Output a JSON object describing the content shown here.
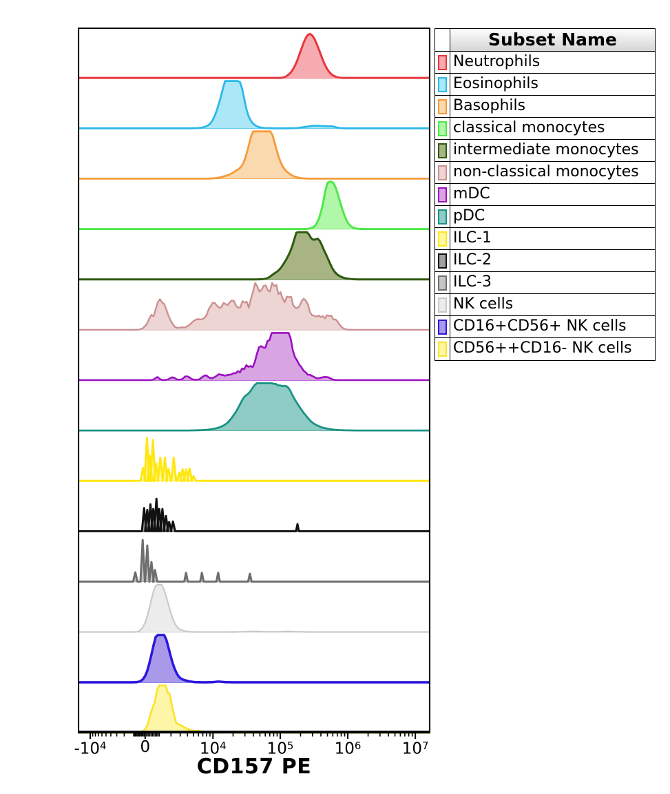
{
  "legend": {
    "header": "Subset Name"
  },
  "axis": {
    "title": "CD157 PE"
  },
  "chart_data": {
    "type": "histogram-ridgeline",
    "xlabel": "CD157 PE",
    "ylabel": "",
    "x_axis_kind": "biexponential",
    "x_range_display": [
      "-1e4",
      "1e7"
    ],
    "x_scale": {
      "T": 2000,
      "c0": 0.191,
      "s": 0.0832,
      "neg_factor": 0.81
    },
    "x_majors": [
      {
        "v": -10000,
        "base": "-10",
        "exp": "4"
      },
      {
        "v": 0,
        "base": "0",
        "exp": ""
      },
      {
        "v": 10000,
        "base": "10",
        "exp": "4"
      },
      {
        "v": 100000,
        "base": "10",
        "exp": "5"
      },
      {
        "v": 1000000,
        "base": "10",
        "exp": "6"
      },
      {
        "v": 10000000,
        "base": "10",
        "exp": "7"
      }
    ],
    "x_minor_decades": {
      "pos": [
        2,
        3,
        4,
        5,
        6
      ],
      "neg": [
        2,
        3
      ]
    },
    "series": [
      {
        "name": "Neutrophils",
        "stroke": "#e8363f",
        "fill": "#f6abb0",
        "stroke_width": 3.0,
        "kind": "smooth",
        "seed": 11,
        "noise": 0.04,
        "range": [
          0.575,
          0.755
        ],
        "peak_value": "2e5",
        "components": [
          [
            0.659,
            0.027,
            0.95
          ]
        ]
      },
      {
        "name": "Eosinophils",
        "stroke": "#2ab9ea",
        "fill": "#ace7f7",
        "stroke_width": 2.8,
        "kind": "noisy",
        "seed": 22,
        "noise": 0.2,
        "range": [
          0.31,
          0.8
        ],
        "peak_value": "2e4",
        "components": [
          [
            0.437,
            0.03,
            0.8
          ],
          [
            0.418,
            0.018,
            0.3
          ],
          [
            0.452,
            0.014,
            0.35
          ],
          [
            0.463,
            0.01,
            0.2
          ],
          [
            0.655,
            0.018,
            0.03
          ],
          [
            0.69,
            0.022,
            0.045
          ],
          [
            0.72,
            0.012,
            0.025
          ]
        ]
      },
      {
        "name": "Basophils",
        "stroke": "#f59a3c",
        "fill": "#fbd9ae",
        "stroke_width": 2.8,
        "kind": "noisy",
        "seed": 33,
        "noise": 0.18,
        "range": [
          0.36,
          0.7
        ],
        "peak_value": "5e4",
        "components": [
          [
            0.527,
            0.036,
            0.85
          ],
          [
            0.505,
            0.018,
            0.45
          ],
          [
            0.545,
            0.012,
            0.25
          ],
          [
            0.45,
            0.03,
            0.08
          ]
        ]
      },
      {
        "name": "classical monocytes",
        "stroke": "#4fe84a",
        "fill": "#b0f7aa",
        "stroke_width": 3.0,
        "kind": "smooth",
        "seed": 44,
        "noise": 0.05,
        "range": [
          0.63,
          0.83
        ],
        "peak_value": "5e5",
        "components": [
          [
            0.723,
            0.022,
            0.92
          ],
          [
            0.708,
            0.012,
            0.25
          ]
        ]
      },
      {
        "name": "intermediate monocytes",
        "stroke": "#2d5a0e",
        "fill": "#a8b483",
        "stroke_width": 3.0,
        "kind": "noisy",
        "seed": 55,
        "noise": 0.16,
        "range": [
          0.5,
          0.8
        ],
        "peak_value": "2.5e5",
        "components": [
          [
            0.652,
            0.04,
            0.85
          ],
          [
            0.625,
            0.02,
            0.45
          ],
          [
            0.69,
            0.018,
            0.25
          ],
          [
            0.58,
            0.015,
            0.1
          ],
          [
            0.555,
            0.01,
            0.05
          ]
        ]
      },
      {
        "name": "non-classical monocytes",
        "stroke": "#cc9091",
        "fill": "#ecd5d3",
        "stroke_width": 2.4,
        "kind": "noisy",
        "seed": 66,
        "noise": 0.5,
        "range": [
          0.155,
          0.8
        ],
        "peak_value": "7e4 (bimodal, minor ~5e2)",
        "components": [
          [
            0.225,
            0.016,
            0.38
          ],
          [
            0.243,
            0.018,
            0.28
          ],
          [
            0.205,
            0.01,
            0.15
          ],
          [
            0.35,
            0.03,
            0.18
          ],
          [
            0.43,
            0.05,
            0.5
          ],
          [
            0.545,
            0.05,
            0.8
          ],
          [
            0.6,
            0.028,
            0.45
          ],
          [
            0.655,
            0.018,
            0.3
          ],
          [
            0.7,
            0.016,
            0.36
          ],
          [
            0.73,
            0.012,
            0.22
          ]
        ]
      },
      {
        "name": "mDC",
        "stroke": "#9b0fc0",
        "fill": "#d8a5e2",
        "stroke_width": 2.6,
        "kind": "noisy",
        "seed": 77,
        "noise": 0.55,
        "range": [
          0.19,
          0.8
        ],
        "peak_value": "9e4",
        "components": [
          [
            0.572,
            0.018,
            0.88
          ],
          [
            0.553,
            0.03,
            0.55
          ],
          [
            0.59,
            0.012,
            0.55
          ],
          [
            0.61,
            0.02,
            0.35
          ],
          [
            0.52,
            0.015,
            0.35
          ],
          [
            0.48,
            0.02,
            0.22
          ],
          [
            0.44,
            0.015,
            0.15
          ],
          [
            0.4,
            0.012,
            0.12
          ],
          [
            0.36,
            0.01,
            0.1
          ],
          [
            0.31,
            0.01,
            0.08
          ],
          [
            0.27,
            0.008,
            0.06
          ],
          [
            0.225,
            0.006,
            0.05
          ],
          [
            0.65,
            0.015,
            0.18
          ],
          [
            0.7,
            0.012,
            0.08
          ]
        ]
      },
      {
        "name": "pDC",
        "stroke": "#1b9384",
        "fill": "#8fccc5",
        "stroke_width": 2.8,
        "kind": "noisy",
        "seed": 88,
        "noise": 0.1,
        "range": [
          0.22,
          0.86
        ],
        "peak_value": "8e4",
        "components": [
          [
            0.548,
            0.065,
            0.8
          ],
          [
            0.51,
            0.035,
            0.3
          ],
          [
            0.6,
            0.028,
            0.28
          ],
          [
            0.465,
            0.02,
            0.15
          ]
        ]
      },
      {
        "name": "ILC-1",
        "stroke": "#ffe714",
        "fill": "#fff9a6",
        "stroke_width": 3.0,
        "kind": "spikes",
        "spike_w": 0.0068,
        "peak_value": "3e2",
        "spikes": [
          [
            0.185,
            0.28
          ],
          [
            0.196,
            0.93
          ],
          [
            0.204,
            0.55
          ],
          [
            0.213,
            0.88
          ],
          [
            0.222,
            0.38
          ],
          [
            0.234,
            0.5
          ],
          [
            0.247,
            0.5
          ],
          [
            0.257,
            0.26
          ],
          [
            0.272,
            0.5
          ],
          [
            0.288,
            0.18
          ],
          [
            0.297,
            0.25
          ],
          [
            0.307,
            0.25
          ],
          [
            0.317,
            0.27
          ],
          [
            0.328,
            0.1
          ]
        ]
      },
      {
        "name": "ILC-2",
        "stroke": "#111111",
        "fill": "#a0a0a0",
        "stroke_width": 3.0,
        "kind": "spikes",
        "spike_w": 0.0062,
        "peak_value": "6e2",
        "spikes": [
          [
            0.188,
            0.5
          ],
          [
            0.197,
            0.46
          ],
          [
            0.206,
            0.58
          ],
          [
            0.214,
            0.48
          ],
          [
            0.223,
            0.7
          ],
          [
            0.231,
            0.48
          ],
          [
            0.24,
            0.48
          ],
          [
            0.25,
            0.33
          ],
          [
            0.259,
            0.2
          ],
          [
            0.27,
            0.21
          ],
          [
            0.623,
            0.155,
            0.004
          ]
        ]
      },
      {
        "name": "ILC-3",
        "stroke": "#6e6e6e",
        "fill": "#c6c6c6",
        "stroke_width": 3.0,
        "kind": "spikes",
        "spike_w": 0.0062,
        "peak_value": "3e2",
        "spikes": [
          [
            0.163,
            0.2
          ],
          [
            0.184,
            0.9
          ],
          [
            0.197,
            0.78
          ],
          [
            0.209,
            0.42
          ],
          [
            0.219,
            0.25
          ],
          [
            0.307,
            0.19,
            0.005
          ],
          [
            0.352,
            0.19,
            0.005
          ],
          [
            0.398,
            0.19,
            0.005
          ],
          [
            0.488,
            0.17,
            0.005
          ]
        ]
      },
      {
        "name": "NK cells",
        "stroke": "#c9c9c9",
        "fill": "#ececec",
        "stroke_width": 2.2,
        "kind": "noisy",
        "seed": 112,
        "noise": 0.07,
        "range": [
          0.16,
          0.7
        ],
        "peak_value": "7e2",
        "components": [
          [
            0.224,
            0.019,
            0.9
          ],
          [
            0.245,
            0.016,
            0.38
          ],
          [
            0.262,
            0.014,
            0.12
          ],
          [
            0.29,
            0.015,
            0.03
          ],
          [
            0.5,
            0.03,
            0.012
          ],
          [
            0.6,
            0.025,
            0.012
          ]
        ]
      },
      {
        "name": "CD16+CD56+ NK cells",
        "stroke": "#2b17dd",
        "fill": "#a89ae9",
        "stroke_width": 3.5,
        "kind": "noisy",
        "seed": 113,
        "noise": 0.08,
        "range": [
          0.155,
          0.48
        ],
        "peak_value": "7.5e2",
        "components": [
          [
            0.228,
            0.019,
            0.92
          ],
          [
            0.248,
            0.016,
            0.42
          ],
          [
            0.268,
            0.014,
            0.14
          ],
          [
            0.3,
            0.015,
            0.04
          ],
          [
            0.4,
            0.01,
            0.015
          ]
        ]
      },
      {
        "name": "CD56++CD16- NK cells",
        "stroke": "#fbe32e",
        "fill": "#fdf6a8",
        "stroke_width": 2.8,
        "kind": "noisy",
        "seed": 114,
        "noise": 0.35,
        "range": [
          0.165,
          0.47
        ],
        "peak_value": "8e2",
        "components": [
          [
            0.231,
            0.018,
            0.85
          ],
          [
            0.249,
            0.013,
            0.55
          ],
          [
            0.266,
            0.012,
            0.22
          ],
          [
            0.288,
            0.012,
            0.12
          ],
          [
            0.315,
            0.01,
            0.06
          ],
          [
            0.345,
            0.01,
            0.04
          ],
          [
            0.42,
            0.01,
            0.025
          ]
        ]
      }
    ]
  }
}
